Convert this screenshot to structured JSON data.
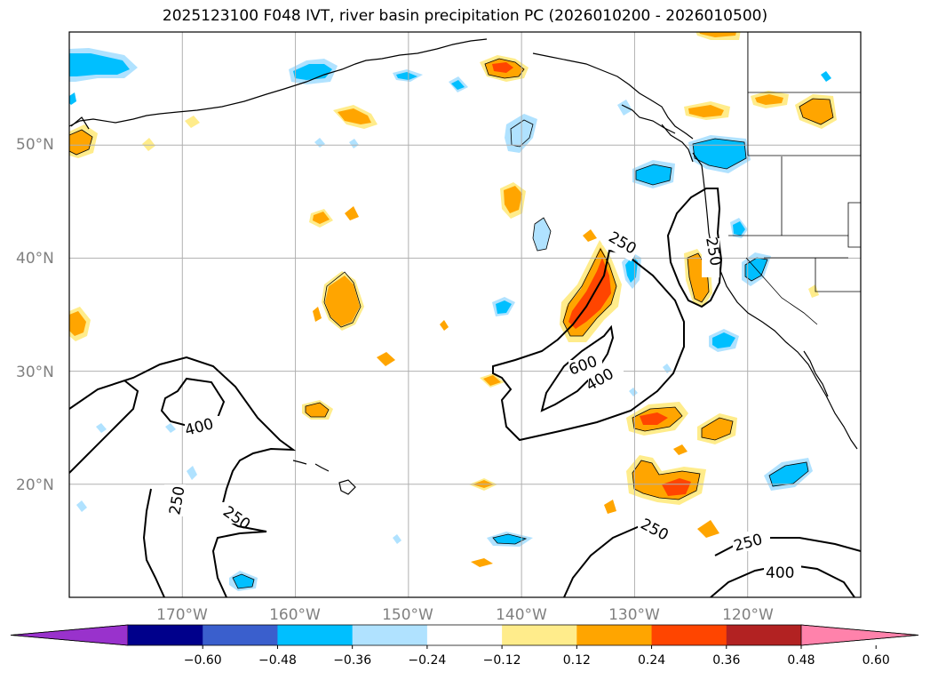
{
  "title": "2025123100 F048 IVT, river basin precipitation PC (2026010200 - 2026010500)",
  "axes": {
    "lat_labels": [
      "50°N",
      "40°N",
      "30°N",
      "20°N"
    ],
    "lon_labels": [
      "170°W",
      "160°W",
      "150°W",
      "140°W",
      "130°W",
      "120°W"
    ],
    "lon_range": [
      -180,
      -110
    ],
    "lat_range": [
      10,
      60
    ],
    "grid": true
  },
  "ivt_contours": {
    "levels": [
      250,
      400,
      600
    ],
    "labels": [
      "250",
      "400",
      "600",
      "400",
      "250",
      "250",
      "250",
      "250",
      "400",
      "250"
    ]
  },
  "colorbar": {
    "tick_labels": [
      "−0.60",
      "−0.48",
      "−0.36",
      "−0.24",
      "−0.12",
      "0.12",
      "0.24",
      "0.36",
      "0.48",
      "0.60"
    ],
    "colors": [
      "#9932CC",
      "#00008B",
      "#3A5FCD",
      "#00BFFF",
      "#B0E2FF",
      "#FFFFFF",
      "#FFEC8B",
      "#FFA500",
      "#FF4500",
      "#B22222",
      "#FF82AB"
    ],
    "extend": "both"
  }
}
